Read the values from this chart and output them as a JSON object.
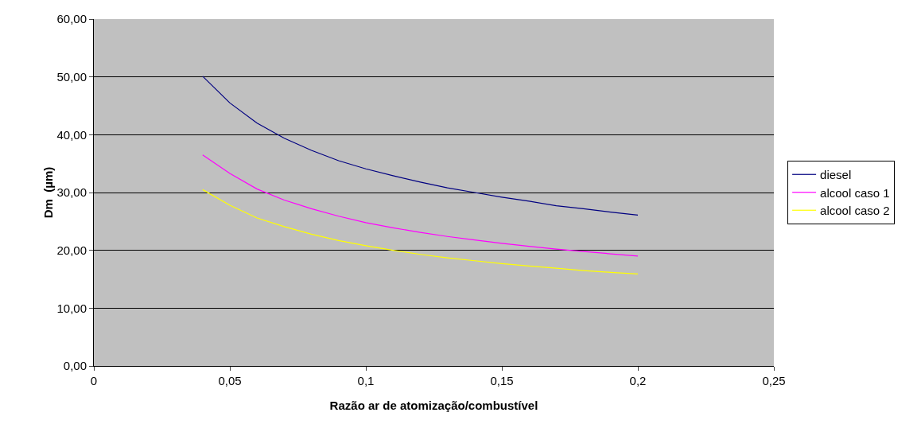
{
  "chart_data": {
    "type": "line",
    "xlabel": "Razão ar de atomização/combustível",
    "ylabel": "Dm  (µm)",
    "x": [
      0.04,
      0.05,
      0.06,
      0.07,
      0.08,
      0.09,
      0.1,
      0.11,
      0.12,
      0.13,
      0.14,
      0.15,
      0.16,
      0.17,
      0.18,
      0.19,
      0.2
    ],
    "series": [
      {
        "name": "diesel",
        "color": "#000080",
        "values": [
          50.1,
          45.5,
          42.0,
          39.4,
          37.3,
          35.5,
          34.1,
          32.9,
          31.8,
          30.8,
          30.0,
          29.2,
          28.5,
          27.7,
          27.2,
          26.6,
          26.1
        ]
      },
      {
        "name": "alcool caso 1",
        "color": "#ff00ff",
        "values": [
          36.5,
          33.3,
          30.6,
          28.7,
          27.2,
          25.9,
          24.8,
          23.9,
          23.1,
          22.4,
          21.8,
          21.2,
          20.7,
          20.2,
          19.8,
          19.4,
          19.0
        ]
      },
      {
        "name": "alcool caso 2",
        "color": "#ffff00",
        "values": [
          30.5,
          27.8,
          25.6,
          24.1,
          22.8,
          21.7,
          20.8,
          20.0,
          19.3,
          18.7,
          18.2,
          17.7,
          17.3,
          16.9,
          16.5,
          16.2,
          15.9
        ]
      }
    ],
    "xlim": [
      0,
      0.25
    ],
    "xticks": [
      0,
      {
        "value": 0.05,
        "label": "0,05"
      },
      {
        "value": 0.1,
        "label": "0,1"
      },
      {
        "value": 0.15,
        "label": "0,15"
      },
      {
        "value": 0.2,
        "label": "0,2"
      },
      {
        "value": 0.25,
        "label": "0,25"
      }
    ],
    "ylim": [
      0,
      60
    ],
    "yticks": [
      {
        "value": 0,
        "label": "0,00"
      },
      {
        "value": 10,
        "label": "10,00"
      },
      {
        "value": 20,
        "label": "20,00"
      },
      {
        "value": 30,
        "label": "30,00"
      },
      {
        "value": 40,
        "label": "40,00"
      },
      {
        "value": 50,
        "label": "50,00"
      },
      {
        "value": 60,
        "label": "60,00"
      }
    ],
    "grid": "y",
    "legend": "right",
    "marker": "none",
    "line_style": "solid"
  }
}
